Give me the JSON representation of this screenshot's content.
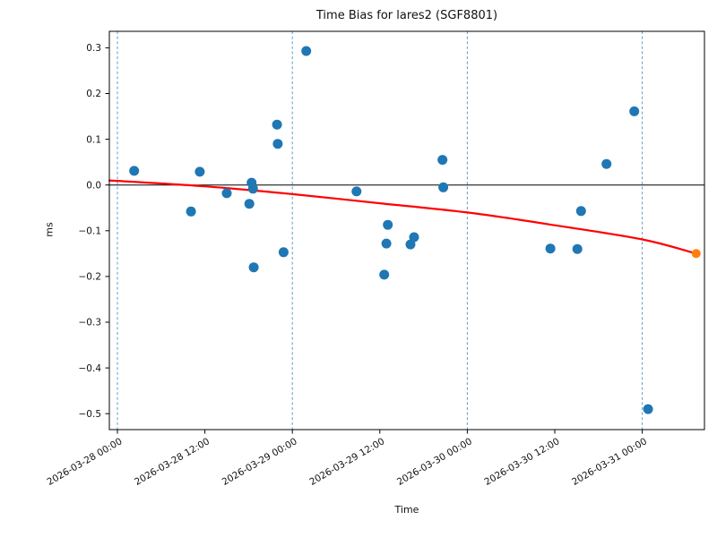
{
  "chart_data": {
    "type": "scatter",
    "title": "Time Bias for lares2 (SGF8801)",
    "xlabel": "Time",
    "ylabel": "ms",
    "grid": "vertical dashed lines at day boundaries only",
    "legend": "none",
    "x_axis": {
      "hours_measured_from": "2026-03-28 00:00",
      "range_hours": [
        -1.1,
        80.5
      ],
      "ticks": [
        {
          "label": "2026-03-28 00:00",
          "hours": 0,
          "grid": true
        },
        {
          "label": "2026-03-28 12:00",
          "hours": 12,
          "grid": false
        },
        {
          "label": "2026-03-29 00:00",
          "hours": 24,
          "grid": true
        },
        {
          "label": "2026-03-29 12:00",
          "hours": 36,
          "grid": false
        },
        {
          "label": "2026-03-30 00:00",
          "hours": 48,
          "grid": true
        },
        {
          "label": "2026-03-30 12:00",
          "hours": 60,
          "grid": false
        },
        {
          "label": "2026-03-31 00:00",
          "hours": 72,
          "grid": true
        }
      ]
    },
    "y_axis": {
      "ticks": [
        0.3,
        0.2,
        0.1,
        0.0,
        -0.1,
        -0.2,
        -0.3,
        -0.4,
        -0.5
      ],
      "range": [
        -0.535,
        0.336
      ],
      "zero_line": true
    },
    "points": [
      {
        "hours": 2.3,
        "ms": 0.031,
        "time": "2026-03-28 02:18"
      },
      {
        "hours": 10.1,
        "ms": -0.058,
        "time": "2026-03-28 10:06"
      },
      {
        "hours": 11.3,
        "ms": 0.029,
        "time": "2026-03-28 11:18"
      },
      {
        "hours": 15.0,
        "ms": -0.018,
        "time": "2026-03-28 15:00"
      },
      {
        "hours": 18.1,
        "ms": -0.041,
        "time": "2026-03-28 18:06"
      },
      {
        "hours": 18.4,
        "ms": 0.005,
        "time": "2026-03-28 18:24"
      },
      {
        "hours": 18.6,
        "ms": -0.008,
        "time": "2026-03-28 18:36"
      },
      {
        "hours": 18.7,
        "ms": -0.18,
        "time": "2026-03-28 18:42"
      },
      {
        "hours": 21.9,
        "ms": 0.132,
        "time": "2026-03-28 21:54"
      },
      {
        "hours": 22.0,
        "ms": 0.09,
        "time": "2026-03-28 22:00"
      },
      {
        "hours": 22.8,
        "ms": -0.147,
        "time": "2026-03-28 22:48"
      },
      {
        "hours": 25.9,
        "ms": 0.293,
        "time": "2026-03-29 01:54"
      },
      {
        "hours": 32.8,
        "ms": -0.014,
        "time": "2026-03-29 08:48"
      },
      {
        "hours": 36.6,
        "ms": -0.196,
        "time": "2026-03-29 12:36"
      },
      {
        "hours": 36.9,
        "ms": -0.128,
        "time": "2026-03-29 12:54"
      },
      {
        "hours": 37.1,
        "ms": -0.087,
        "time": "2026-03-29 13:06"
      },
      {
        "hours": 40.2,
        "ms": -0.13,
        "time": "2026-03-29 16:12"
      },
      {
        "hours": 40.7,
        "ms": -0.114,
        "time": "2026-03-29 16:42"
      },
      {
        "hours": 44.6,
        "ms": 0.055,
        "time": "2026-03-29 20:36"
      },
      {
        "hours": 44.7,
        "ms": -0.005,
        "time": "2026-03-29 20:42"
      },
      {
        "hours": 59.4,
        "ms": -0.139,
        "time": "2026-03-30 11:24"
      },
      {
        "hours": 63.1,
        "ms": -0.14,
        "time": "2026-03-30 15:06"
      },
      {
        "hours": 63.6,
        "ms": -0.057,
        "time": "2026-03-30 15:36"
      },
      {
        "hours": 67.1,
        "ms": 0.046,
        "time": "2026-03-30 19:06"
      },
      {
        "hours": 70.9,
        "ms": 0.161,
        "time": "2026-03-30 22:54"
      },
      {
        "hours": 72.8,
        "ms": -0.49,
        "time": "2026-03-31 00:48"
      }
    ],
    "trend_line": {
      "color": "#ff0000",
      "points": [
        {
          "hours": -1.1,
          "ms": 0.01
        },
        {
          "hours": 12,
          "ms": -0.003
        },
        {
          "hours": 24,
          "ms": -0.02
        },
        {
          "hours": 36,
          "ms": -0.04
        },
        {
          "hours": 48,
          "ms": -0.06
        },
        {
          "hours": 60,
          "ms": -0.088
        },
        {
          "hours": 72,
          "ms": -0.119
        },
        {
          "hours": 79.4,
          "ms": -0.15
        }
      ]
    },
    "highlight_point": {
      "hours": 79.4,
      "ms": -0.15,
      "time": "2026-03-31 07:24",
      "color": "#ff7f0e"
    },
    "colors": {
      "scatter": "#1f77b4",
      "grid": "#5b9dc9",
      "zero_line": "#000000",
      "spine": "#000000"
    }
  }
}
